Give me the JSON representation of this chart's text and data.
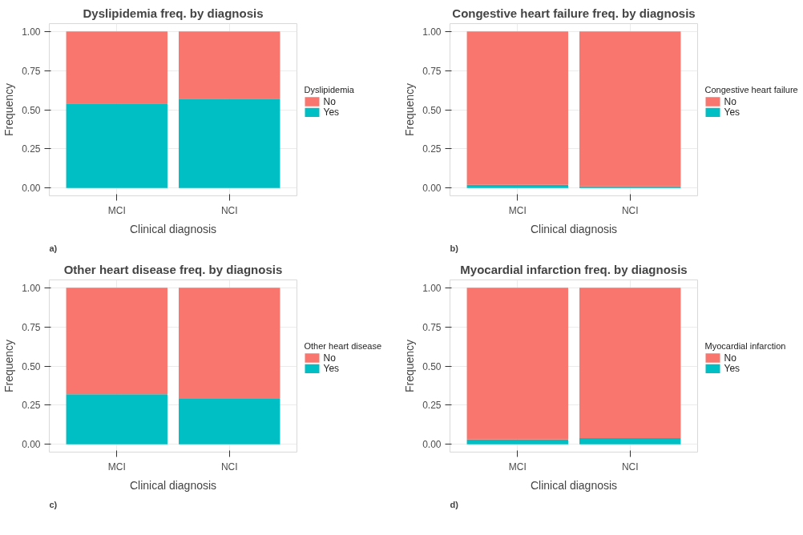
{
  "chart_data": [
    {
      "type": "bar",
      "stacked": true,
      "title": "Dyslipidemia freq. by diagnosis",
      "xlabel": "Clinical diagnosis",
      "ylabel": "Frequency",
      "legend_title": "Dyslipidemia",
      "categories": [
        "MCI",
        "NCI"
      ],
      "series": [
        {
          "name": "Yes",
          "color": "#00bfc4",
          "values": [
            0.54,
            0.57
          ]
        },
        {
          "name": "No",
          "color": "#f8766d",
          "values": [
            0.46,
            0.43
          ]
        }
      ],
      "ylim": [
        -0.05,
        1.05
      ],
      "yticks": [
        {
          "value": 0,
          "label": "0.00"
        },
        {
          "value": 0.25,
          "label": "0.25"
        },
        {
          "value": 0.5,
          "label": "0.50"
        },
        {
          "value": 0.75,
          "label": "0.75"
        },
        {
          "value": 1,
          "label": "1.00"
        }
      ],
      "grid": true,
      "legend": "right",
      "annotations": [
        "a)"
      ]
    },
    {
      "type": "bar",
      "stacked": true,
      "title": "Congestive heart failure freq. by diagnosis",
      "xlabel": "Clinical diagnosis",
      "ylabel": "Frequency",
      "legend_title": "Congestive heart failure",
      "categories": [
        "MCI",
        "NCI"
      ],
      "series": [
        {
          "name": "Yes",
          "color": "#00bfc4",
          "values": [
            0.02,
            0.01
          ]
        },
        {
          "name": "No",
          "color": "#f8766d",
          "values": [
            0.98,
            0.99
          ]
        }
      ],
      "ylim": [
        -0.05,
        1.05
      ],
      "yticks": [
        {
          "value": 0,
          "label": "0.00"
        },
        {
          "value": 0.25,
          "label": "0.25"
        },
        {
          "value": 0.5,
          "label": "0.50"
        },
        {
          "value": 0.75,
          "label": "0.75"
        },
        {
          "value": 1,
          "label": "1.00"
        }
      ],
      "grid": true,
      "legend": "right",
      "annotations": [
        "b)"
      ]
    },
    {
      "type": "bar",
      "stacked": true,
      "title": "Other heart disease freq. by diagnosis",
      "xlabel": "Clinical diagnosis",
      "ylabel": "Frequency",
      "legend_title": "Other heart disease",
      "categories": [
        "MCI",
        "NCI"
      ],
      "series": [
        {
          "name": "Yes",
          "color": "#00bfc4",
          "values": [
            0.32,
            0.29
          ]
        },
        {
          "name": "No",
          "color": "#f8766d",
          "values": [
            0.68,
            0.71
          ]
        }
      ],
      "ylim": [
        -0.05,
        1.05
      ],
      "yticks": [
        {
          "value": 0,
          "label": "0.00"
        },
        {
          "value": 0.25,
          "label": "0.25"
        },
        {
          "value": 0.5,
          "label": "0.50"
        },
        {
          "value": 0.75,
          "label": "0.75"
        },
        {
          "value": 1,
          "label": "1.00"
        }
      ],
      "grid": true,
      "legend": "right",
      "annotations": [
        "c)"
      ]
    },
    {
      "type": "bar",
      "stacked": true,
      "title": "Myocardial infarction freq. by diagnosis",
      "xlabel": "Clinical diagnosis",
      "ylabel": "Frequency",
      "legend_title": "Myocardial infarction",
      "categories": [
        "MCI",
        "NCI"
      ],
      "series": [
        {
          "name": "Yes",
          "color": "#00bfc4",
          "values": [
            0.03,
            0.04
          ]
        },
        {
          "name": "No",
          "color": "#f8766d",
          "values": [
            0.97,
            0.96
          ]
        }
      ],
      "ylim": [
        -0.05,
        1.05
      ],
      "yticks": [
        {
          "value": 0,
          "label": "0.00"
        },
        {
          "value": 0.25,
          "label": "0.25"
        },
        {
          "value": 0.5,
          "label": "0.50"
        },
        {
          "value": 0.75,
          "label": "0.75"
        },
        {
          "value": 1,
          "label": "1.00"
        }
      ],
      "grid": true,
      "legend": "right",
      "annotations": [
        "d)"
      ]
    }
  ]
}
